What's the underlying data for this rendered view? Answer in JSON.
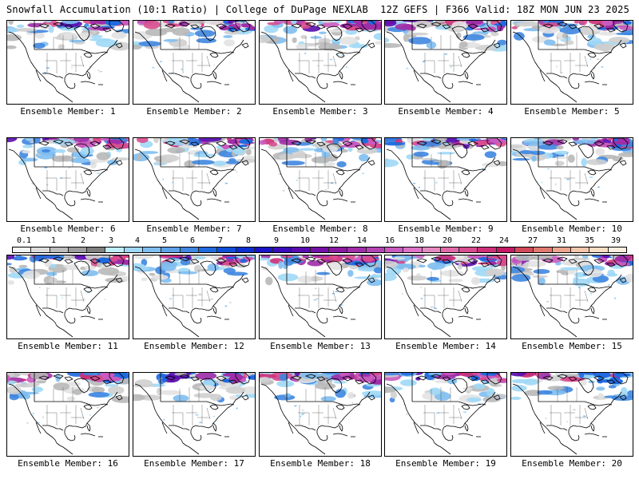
{
  "header": {
    "left": "Snowfall Accumulation (10:1 Ratio) | College of DuPage NEXLAB",
    "right": "12Z GEFS | F366 Valid: 18Z MON JUN 23 2025"
  },
  "colorbar": {
    "labels": [
      "0.1",
      "1",
      "2",
      "3",
      "4",
      "5",
      "6",
      "7",
      "8",
      "9",
      "10",
      "12",
      "14",
      "16",
      "18",
      "20",
      "22",
      "24",
      "27",
      "31",
      "35",
      "39"
    ],
    "colors": [
      "#f4f4f4",
      "#dcdcdc",
      "#bdbdbd",
      "#9e9e9e",
      "#7f7f7f",
      "#bfefff",
      "#9fd8f6",
      "#7fbef0",
      "#5ea2e8",
      "#3f86e0",
      "#1f6ae0",
      "#0f4fd8",
      "#0a2ecf",
      "#1a14c8",
      "#3a0cbc",
      "#5a0cb0",
      "#7410a6",
      "#8a1aa0",
      "#9f2ea8",
      "#b444b4",
      "#c95ac0",
      "#dd74c8",
      "#e58ac0",
      "#e06aa8",
      "#d84c8f",
      "#ce3078",
      "#c21a64",
      "#d24a5a",
      "#e07a70",
      "#eca48e",
      "#f4c6ac",
      "#f8dcc4",
      "#fbeede"
    ]
  },
  "panels": [
    {
      "label": "Ensemble Member: 1"
    },
    {
      "label": "Ensemble Member: 2"
    },
    {
      "label": "Ensemble Member: 3"
    },
    {
      "label": "Ensemble Member: 4"
    },
    {
      "label": "Ensemble Member: 5"
    },
    {
      "label": "Ensemble Member: 6"
    },
    {
      "label": "Ensemble Member: 7"
    },
    {
      "label": "Ensemble Member: 8"
    },
    {
      "label": "Ensemble Member: 9"
    },
    {
      "label": "Ensemble Member: 10"
    },
    {
      "label": "Ensemble Member: 11"
    },
    {
      "label": "Ensemble Member: 12"
    },
    {
      "label": "Ensemble Member: 13"
    },
    {
      "label": "Ensemble Member: 14"
    },
    {
      "label": "Ensemble Member: 15"
    },
    {
      "label": "Ensemble Member: 16"
    },
    {
      "label": "Ensemble Member: 17"
    },
    {
      "label": "Ensemble Member: 18"
    },
    {
      "label": "Ensemble Member: 19"
    },
    {
      "label": "Ensemble Member: 20"
    }
  ]
}
